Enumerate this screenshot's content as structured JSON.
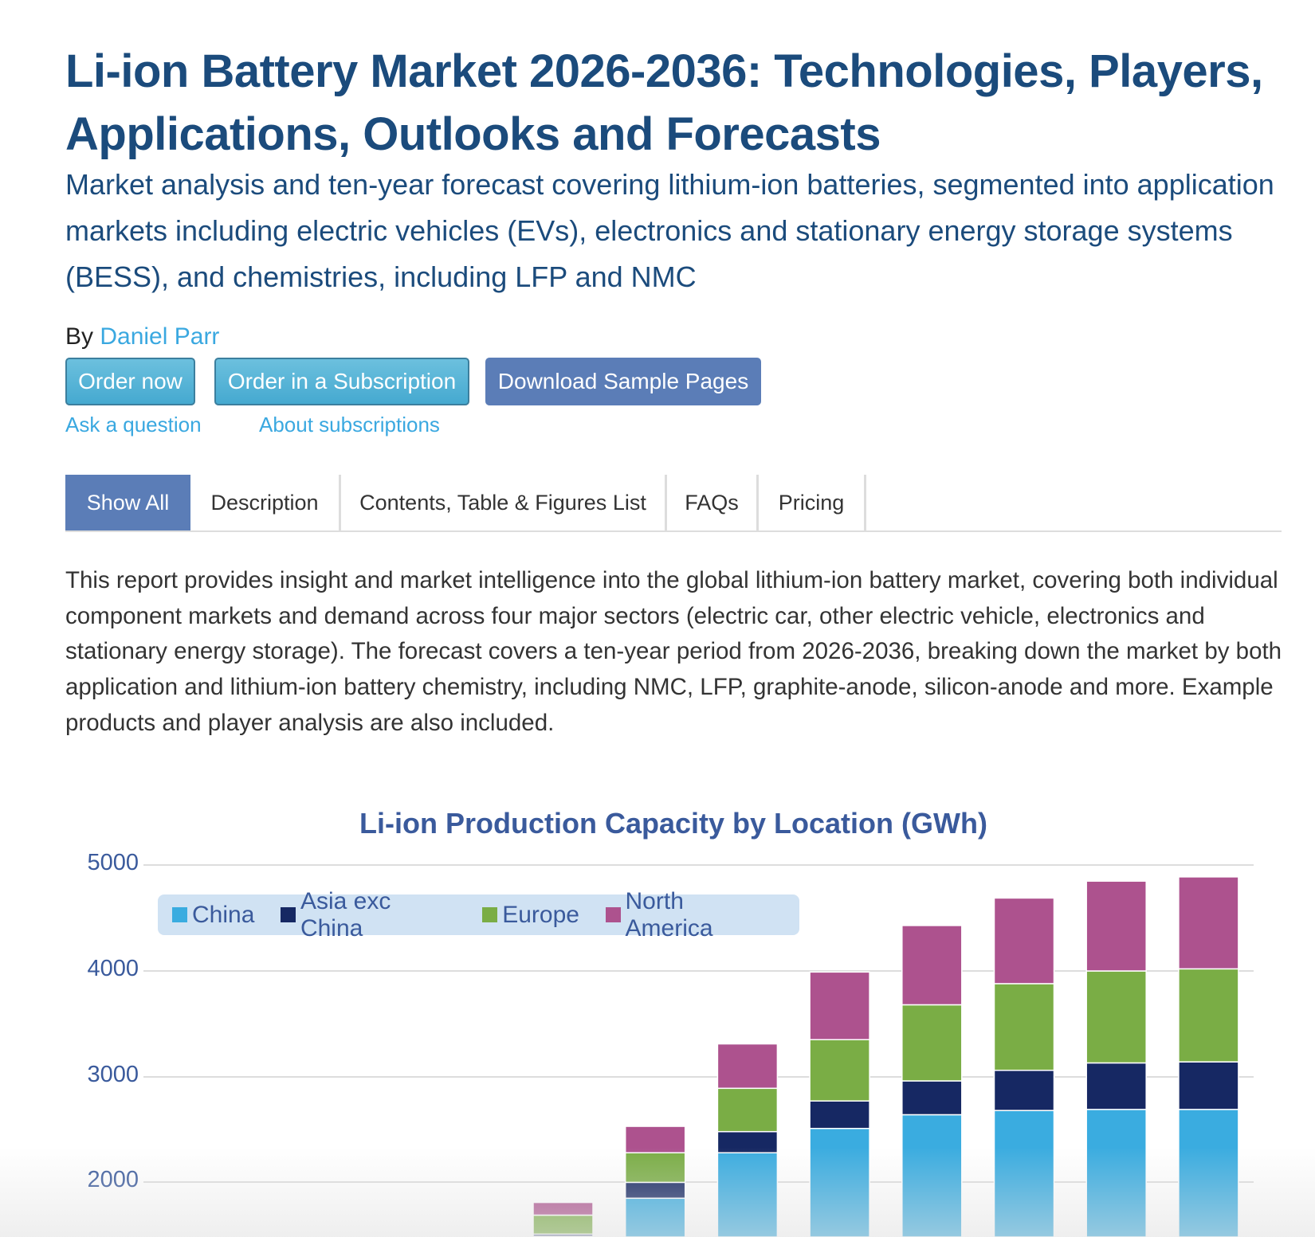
{
  "header": {
    "title": "Li-ion Battery Market 2026-2036: Technologies, Players, Applications, Outlooks and Forecasts",
    "subtitle": "Market analysis and ten-year forecast covering lithium-ion batteries, segmented into application markets including electric vehicles (EVs), electronics and stationary energy storage systems (BESS), and chemistries, including LFP and NMC",
    "by_label": "By",
    "author": "Daniel Parr"
  },
  "actions": {
    "order_now": "Order now",
    "order_subscription": "Order in a Subscription",
    "download_sample": "Download Sample Pages",
    "ask_question": "Ask a question",
    "about_subscriptions": "About subscriptions"
  },
  "tabs": [
    {
      "label": "Show All",
      "active": true
    },
    {
      "label": "Description",
      "active": false
    },
    {
      "label": "Contents, Table & Figures List",
      "active": false
    },
    {
      "label": "FAQs",
      "active": false
    },
    {
      "label": "Pricing",
      "active": false
    }
  ],
  "description": "This report provides insight and market intelligence into the global lithium-ion battery market, covering both individual component markets and demand across four major sectors (electric car, other electric vehicle, electronics and stationary energy storage). The forecast covers a ten-year period from 2026-2036, breaking down the market by both application and lithium-ion battery chemistry, including NMC, LFP, graphite-anode, silicon-anode and more. Example products and player analysis are also included.",
  "chart_data": {
    "type": "bar",
    "stacked": true,
    "title": "Li-ion Production Capacity by Location (GWh)",
    "xlabel": "",
    "ylabel": "",
    "yticks": [
      "5000",
      "4000",
      "3000",
      "2000"
    ],
    "ylim_visible": [
      1700,
      5000
    ],
    "grid": true,
    "legend": "top-left",
    "categories": [
      "",
      "",
      "",
      "",
      "",
      "",
      "",
      ""
    ],
    "series": [
      {
        "name": "China",
        "color": "#3aace0",
        "values": [
          1490,
          1850,
          2280,
          2510,
          2640,
          2680,
          2690,
          2690
        ]
      },
      {
        "name": "Asia exc China",
        "color": "#162863",
        "values": [
          20,
          150,
          200,
          260,
          320,
          380,
          440,
          450
        ]
      },
      {
        "name": "Europe",
        "color": "#7aad45",
        "values": [
          180,
          280,
          410,
          580,
          720,
          820,
          870,
          880
        ]
      },
      {
        "name": "North America",
        "color": "#ad528e",
        "values": [
          120,
          250,
          420,
          640,
          750,
          810,
          850,
          870
        ]
      }
    ]
  }
}
